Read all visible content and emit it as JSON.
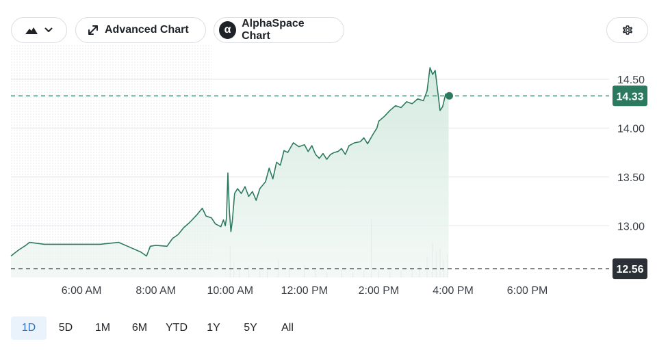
{
  "toolbar": {
    "chart_type_icon": "mountain-area-icon",
    "advanced_chart_label": "Advanced Chart",
    "advanced_chart_icon": "expand-arrows-icon",
    "alphaspace_chart_label": "AlphaSpace Chart",
    "alphaspace_chart_icon": "alpha-logo-icon",
    "settings_icon": "gear-icon"
  },
  "ranges": [
    "1D",
    "5D",
    "1M",
    "6M",
    "YTD",
    "1Y",
    "5Y",
    "All"
  ],
  "active_range": "1D",
  "colors": {
    "line": "#2b7a5f",
    "area_fill": "#dcefe6",
    "current_badge": "#2b7a5f",
    "prev_close_badge": "#2b3036",
    "grid": "#e3e6ea",
    "volume": "#d4d8dc"
  },
  "chart_data": {
    "type": "area",
    "x_axis": {
      "ticks": [
        "6:00 AM",
        "8:00 AM",
        "10:00 AM",
        "12:00 PM",
        "2:00 PM",
        "4:00 PM",
        "6:00 PM"
      ],
      "tick_hours": [
        6,
        8,
        10,
        12,
        14,
        16,
        18
      ],
      "range_hours": [
        4.1,
        20.2
      ]
    },
    "y_axis": {
      "ticks": [
        "14.50",
        "14.00",
        "13.50",
        "13.00"
      ],
      "tick_values": [
        14.5,
        14.0,
        13.5,
        13.0
      ],
      "range": [
        12.47,
        14.85
      ],
      "position": "right"
    },
    "grid": true,
    "premarket_shaded_until_hour": 9.5,
    "current_price": {
      "value": 14.33,
      "label": "14.33"
    },
    "previous_close": {
      "value": 12.56,
      "label": "12.56"
    },
    "series": [
      {
        "points": [
          [
            4.1,
            12.69
          ],
          [
            4.2,
            12.72
          ],
          [
            4.3,
            12.75
          ],
          [
            4.5,
            12.8
          ],
          [
            4.6,
            12.83
          ],
          [
            5.0,
            12.81
          ],
          [
            5.5,
            12.81
          ],
          [
            6.0,
            12.81
          ],
          [
            6.5,
            12.81
          ],
          [
            7.0,
            12.83
          ],
          [
            7.3,
            12.78
          ],
          [
            7.6,
            12.73
          ],
          [
            7.75,
            12.69
          ],
          [
            7.85,
            12.79
          ],
          [
            8.0,
            12.8
          ],
          [
            8.3,
            12.79
          ],
          [
            8.45,
            12.87
          ],
          [
            8.6,
            12.91
          ],
          [
            8.75,
            12.98
          ],
          [
            8.9,
            13.03
          ],
          [
            9.1,
            13.11
          ],
          [
            9.25,
            13.18
          ],
          [
            9.35,
            13.1
          ],
          [
            9.5,
            13.08
          ],
          [
            9.6,
            13.02
          ],
          [
            9.75,
            12.99
          ],
          [
            9.82,
            13.06
          ],
          [
            9.87,
            13.0
          ],
          [
            9.9,
            13.08
          ],
          [
            9.94,
            13.54
          ],
          [
            9.98,
            13.15
          ],
          [
            10.02,
            12.94
          ],
          [
            10.06,
            13.05
          ],
          [
            10.12,
            13.33
          ],
          [
            10.2,
            13.38
          ],
          [
            10.3,
            13.33
          ],
          [
            10.4,
            13.4
          ],
          [
            10.5,
            13.3
          ],
          [
            10.6,
            13.35
          ],
          [
            10.7,
            13.26
          ],
          [
            10.8,
            13.38
          ],
          [
            10.95,
            13.45
          ],
          [
            11.05,
            13.59
          ],
          [
            11.15,
            13.48
          ],
          [
            11.25,
            13.65
          ],
          [
            11.35,
            13.62
          ],
          [
            11.45,
            13.77
          ],
          [
            11.55,
            13.75
          ],
          [
            11.7,
            13.85
          ],
          [
            11.85,
            13.81
          ],
          [
            12.0,
            13.83
          ],
          [
            12.1,
            13.76
          ],
          [
            12.2,
            13.82
          ],
          [
            12.3,
            13.73
          ],
          [
            12.4,
            13.69
          ],
          [
            12.5,
            13.74
          ],
          [
            12.6,
            13.68
          ],
          [
            12.7,
            13.73
          ],
          [
            12.8,
            13.75
          ],
          [
            12.9,
            13.76
          ],
          [
            13.0,
            13.79
          ],
          [
            13.1,
            13.73
          ],
          [
            13.2,
            13.82
          ],
          [
            13.35,
            13.85
          ],
          [
            13.5,
            13.86
          ],
          [
            13.6,
            13.9
          ],
          [
            13.7,
            13.84
          ],
          [
            13.85,
            13.94
          ],
          [
            13.95,
            14.0
          ],
          [
            14.0,
            14.07
          ],
          [
            14.15,
            14.12
          ],
          [
            14.3,
            14.18
          ],
          [
            14.45,
            14.23
          ],
          [
            14.6,
            14.21
          ],
          [
            14.75,
            14.27
          ],
          [
            14.9,
            14.25
          ],
          [
            15.05,
            14.3
          ],
          [
            15.2,
            14.28
          ],
          [
            15.3,
            14.38
          ],
          [
            15.38,
            14.62
          ],
          [
            15.45,
            14.55
          ],
          [
            15.52,
            14.59
          ],
          [
            15.58,
            14.4
          ],
          [
            15.65,
            14.18
          ],
          [
            15.72,
            14.22
          ],
          [
            15.8,
            14.35
          ],
          [
            15.88,
            14.33
          ]
        ]
      }
    ],
    "volume": [
      [
        10.0,
        0.55
      ],
      [
        10.1,
        0.25
      ],
      [
        10.25,
        0.15
      ],
      [
        10.5,
        0.2
      ],
      [
        10.8,
        0.12
      ],
      [
        11.0,
        0.18
      ],
      [
        11.3,
        0.3
      ],
      [
        11.6,
        0.15
      ],
      [
        12.0,
        0.22
      ],
      [
        12.3,
        0.12
      ],
      [
        12.6,
        0.1
      ],
      [
        13.0,
        0.14
      ],
      [
        13.3,
        0.1
      ],
      [
        13.6,
        0.12
      ],
      [
        13.8,
        1.0
      ],
      [
        14.0,
        0.15
      ],
      [
        14.3,
        0.1
      ],
      [
        14.6,
        0.12
      ],
      [
        14.9,
        0.15
      ],
      [
        15.1,
        0.2
      ],
      [
        15.3,
        0.35
      ],
      [
        15.45,
        0.6
      ],
      [
        15.55,
        0.45
      ],
      [
        15.65,
        0.5
      ],
      [
        15.75,
        0.3
      ],
      [
        15.85,
        0.4
      ]
    ]
  }
}
